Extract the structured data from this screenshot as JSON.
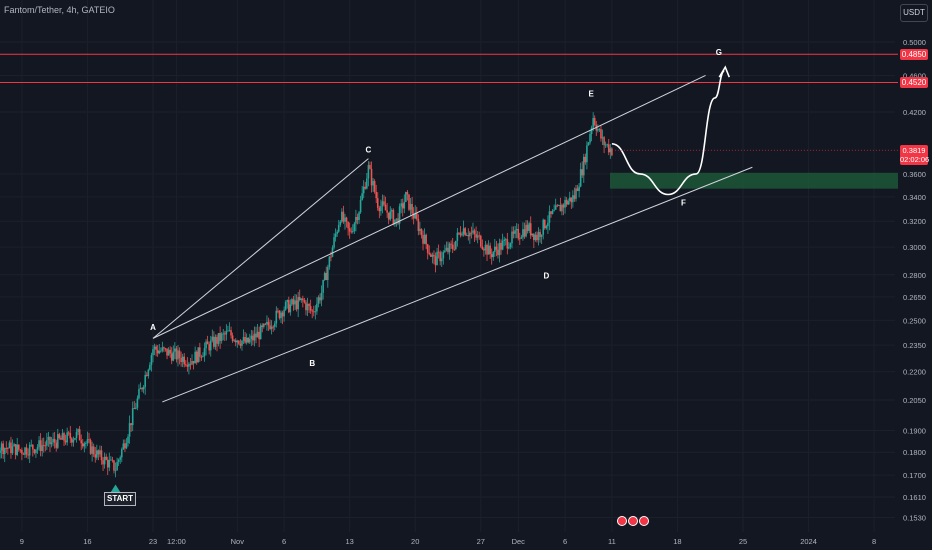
{
  "header": {
    "title": "Fantom/Tether, 4h, GATEIO",
    "currency": "USDT"
  },
  "colors": {
    "background": "#131722",
    "up": "#26a69a",
    "down": "#ef5350",
    "hline": "#f23645",
    "zone": "#1e5a3a",
    "text": "#b2b5be",
    "line": "#d1d4dc"
  },
  "chart_data": {
    "type": "candlestick",
    "title": "Fantom/Tether, 4h, GATEIO",
    "scale": "log",
    "ylim": [
      0.151,
      0.57
    ],
    "y_ticks": [
      "0.5000",
      "0.4600",
      "0.4200",
      "0.3600",
      "0.3400",
      "0.3200",
      "0.3000",
      "0.2800",
      "0.2650",
      "0.2500",
      "0.2350",
      "0.2200",
      "0.2050",
      "0.1900",
      "0.1800",
      "0.1700",
      "0.1610",
      "0.1530"
    ],
    "x_ticks": [
      "9",
      "16",
      "23",
      "12:00",
      "Nov",
      "6",
      "13",
      "20",
      "27",
      "Dec",
      "6",
      "11",
      "18",
      "25",
      "2024",
      "8"
    ],
    "horizontal_lines": [
      {
        "label": "0.4850",
        "value": 0.485
      },
      {
        "label": "0.4520",
        "value": 0.452
      }
    ],
    "last_price": {
      "label": "0.3819",
      "countdown": "02:02:06",
      "value": 0.3819
    },
    "support_zone": [
      0.347,
      0.361
    ],
    "annotations": [
      {
        "label": "START",
        "date": "Oct 19",
        "price": 0.172
      },
      {
        "label": "A",
        "date": "Oct 23",
        "price": 0.238
      },
      {
        "label": "B",
        "date": "Nov 9",
        "price": 0.231
      },
      {
        "label": "C",
        "date": "Nov 15",
        "price": 0.374
      },
      {
        "label": "D",
        "date": "Dec 4",
        "price": 0.286
      },
      {
        "label": "E",
        "date": "Dec 9",
        "price": 0.428
      },
      {
        "label": "F",
        "date": "Dec 18",
        "price": 0.341
      },
      {
        "label": "G",
        "date": "Dec 22",
        "price": 0.472
      }
    ],
    "trendlines": [
      {
        "name": "lower",
        "from": {
          "date": "Oct 24",
          "price": 0.204
        },
        "to": {
          "date": "Dec 26",
          "price": 0.366
        }
      },
      {
        "name": "upper",
        "from": {
          "date": "Oct 23",
          "price": 0.239
        },
        "to": {
          "date": "Dec 21",
          "price": 0.46
        }
      },
      {
        "name": "A-C",
        "from": {
          "date": "Oct 23",
          "price": 0.239
        },
        "to": {
          "date": "Nov 15",
          "price": 0.374
        }
      }
    ],
    "waypoints": [
      {
        "date": "Oct 2",
        "price": 0.195
      },
      {
        "date": "Oct 4",
        "price": 0.189
      },
      {
        "date": "Oct 6",
        "price": 0.183
      },
      {
        "date": "Oct 9",
        "price": 0.181
      },
      {
        "date": "Oct 12",
        "price": 0.184
      },
      {
        "date": "Oct 15",
        "price": 0.188
      },
      {
        "date": "Oct 17",
        "price": 0.179
      },
      {
        "date": "Oct 19",
        "price": 0.173
      },
      {
        "date": "Oct 20",
        "price": 0.185
      },
      {
        "date": "Oct 21",
        "price": 0.2
      },
      {
        "date": "Oct 22",
        "price": 0.215
      },
      {
        "date": "Oct 23",
        "price": 0.233
      },
      {
        "date": "Oct 25",
        "price": 0.23
      },
      {
        "date": "Oct 27",
        "price": 0.226
      },
      {
        "date": "Oct 29",
        "price": 0.235
      },
      {
        "date": "Oct 31",
        "price": 0.242
      },
      {
        "date": "Nov 2",
        "price": 0.236
      },
      {
        "date": "Nov 4",
        "price": 0.245
      },
      {
        "date": "Nov 6",
        "price": 0.258
      },
      {
        "date": "Nov 8",
        "price": 0.262
      },
      {
        "date": "Nov 9",
        "price": 0.255
      },
      {
        "date": "Nov 10",
        "price": 0.268
      },
      {
        "date": "Nov 11",
        "price": 0.295
      },
      {
        "date": "Nov 12",
        "price": 0.325
      },
      {
        "date": "Nov 13",
        "price": 0.31
      },
      {
        "date": "Nov 14",
        "price": 0.33
      },
      {
        "date": "Nov 15",
        "price": 0.365
      },
      {
        "date": "Nov 16",
        "price": 0.335
      },
      {
        "date": "Nov 18",
        "price": 0.32
      },
      {
        "date": "Nov 19",
        "price": 0.34
      },
      {
        "date": "Nov 21",
        "price": 0.305
      },
      {
        "date": "Nov 22",
        "price": 0.29
      },
      {
        "date": "Nov 24",
        "price": 0.3
      },
      {
        "date": "Nov 25",
        "price": 0.315
      },
      {
        "date": "Nov 27",
        "price": 0.305
      },
      {
        "date": "Nov 28",
        "price": 0.295
      },
      {
        "date": "Nov 30",
        "price": 0.305
      },
      {
        "date": "Dec 2",
        "price": 0.315
      },
      {
        "date": "Dec 3",
        "price": 0.308
      },
      {
        "date": "Dec 4",
        "price": 0.32
      },
      {
        "date": "Dec 6",
        "price": 0.335
      },
      {
        "date": "Dec 7",
        "price": 0.34
      },
      {
        "date": "Dec 8",
        "price": 0.37
      },
      {
        "date": "Dec 9",
        "price": 0.415
      },
      {
        "date": "Dec 10",
        "price": 0.39
      },
      {
        "date": "Dec 11",
        "price": 0.3819
      }
    ],
    "projection": [
      {
        "date": "Dec 11",
        "price": 0.388
      },
      {
        "date": "Dec 14",
        "price": 0.36
      },
      {
        "date": "Dec 17",
        "price": 0.342
      },
      {
        "date": "Dec 20",
        "price": 0.36
      },
      {
        "date": "Dec 22",
        "price": 0.435
      },
      {
        "date": "Dec 23",
        "price": 0.465
      }
    ]
  }
}
